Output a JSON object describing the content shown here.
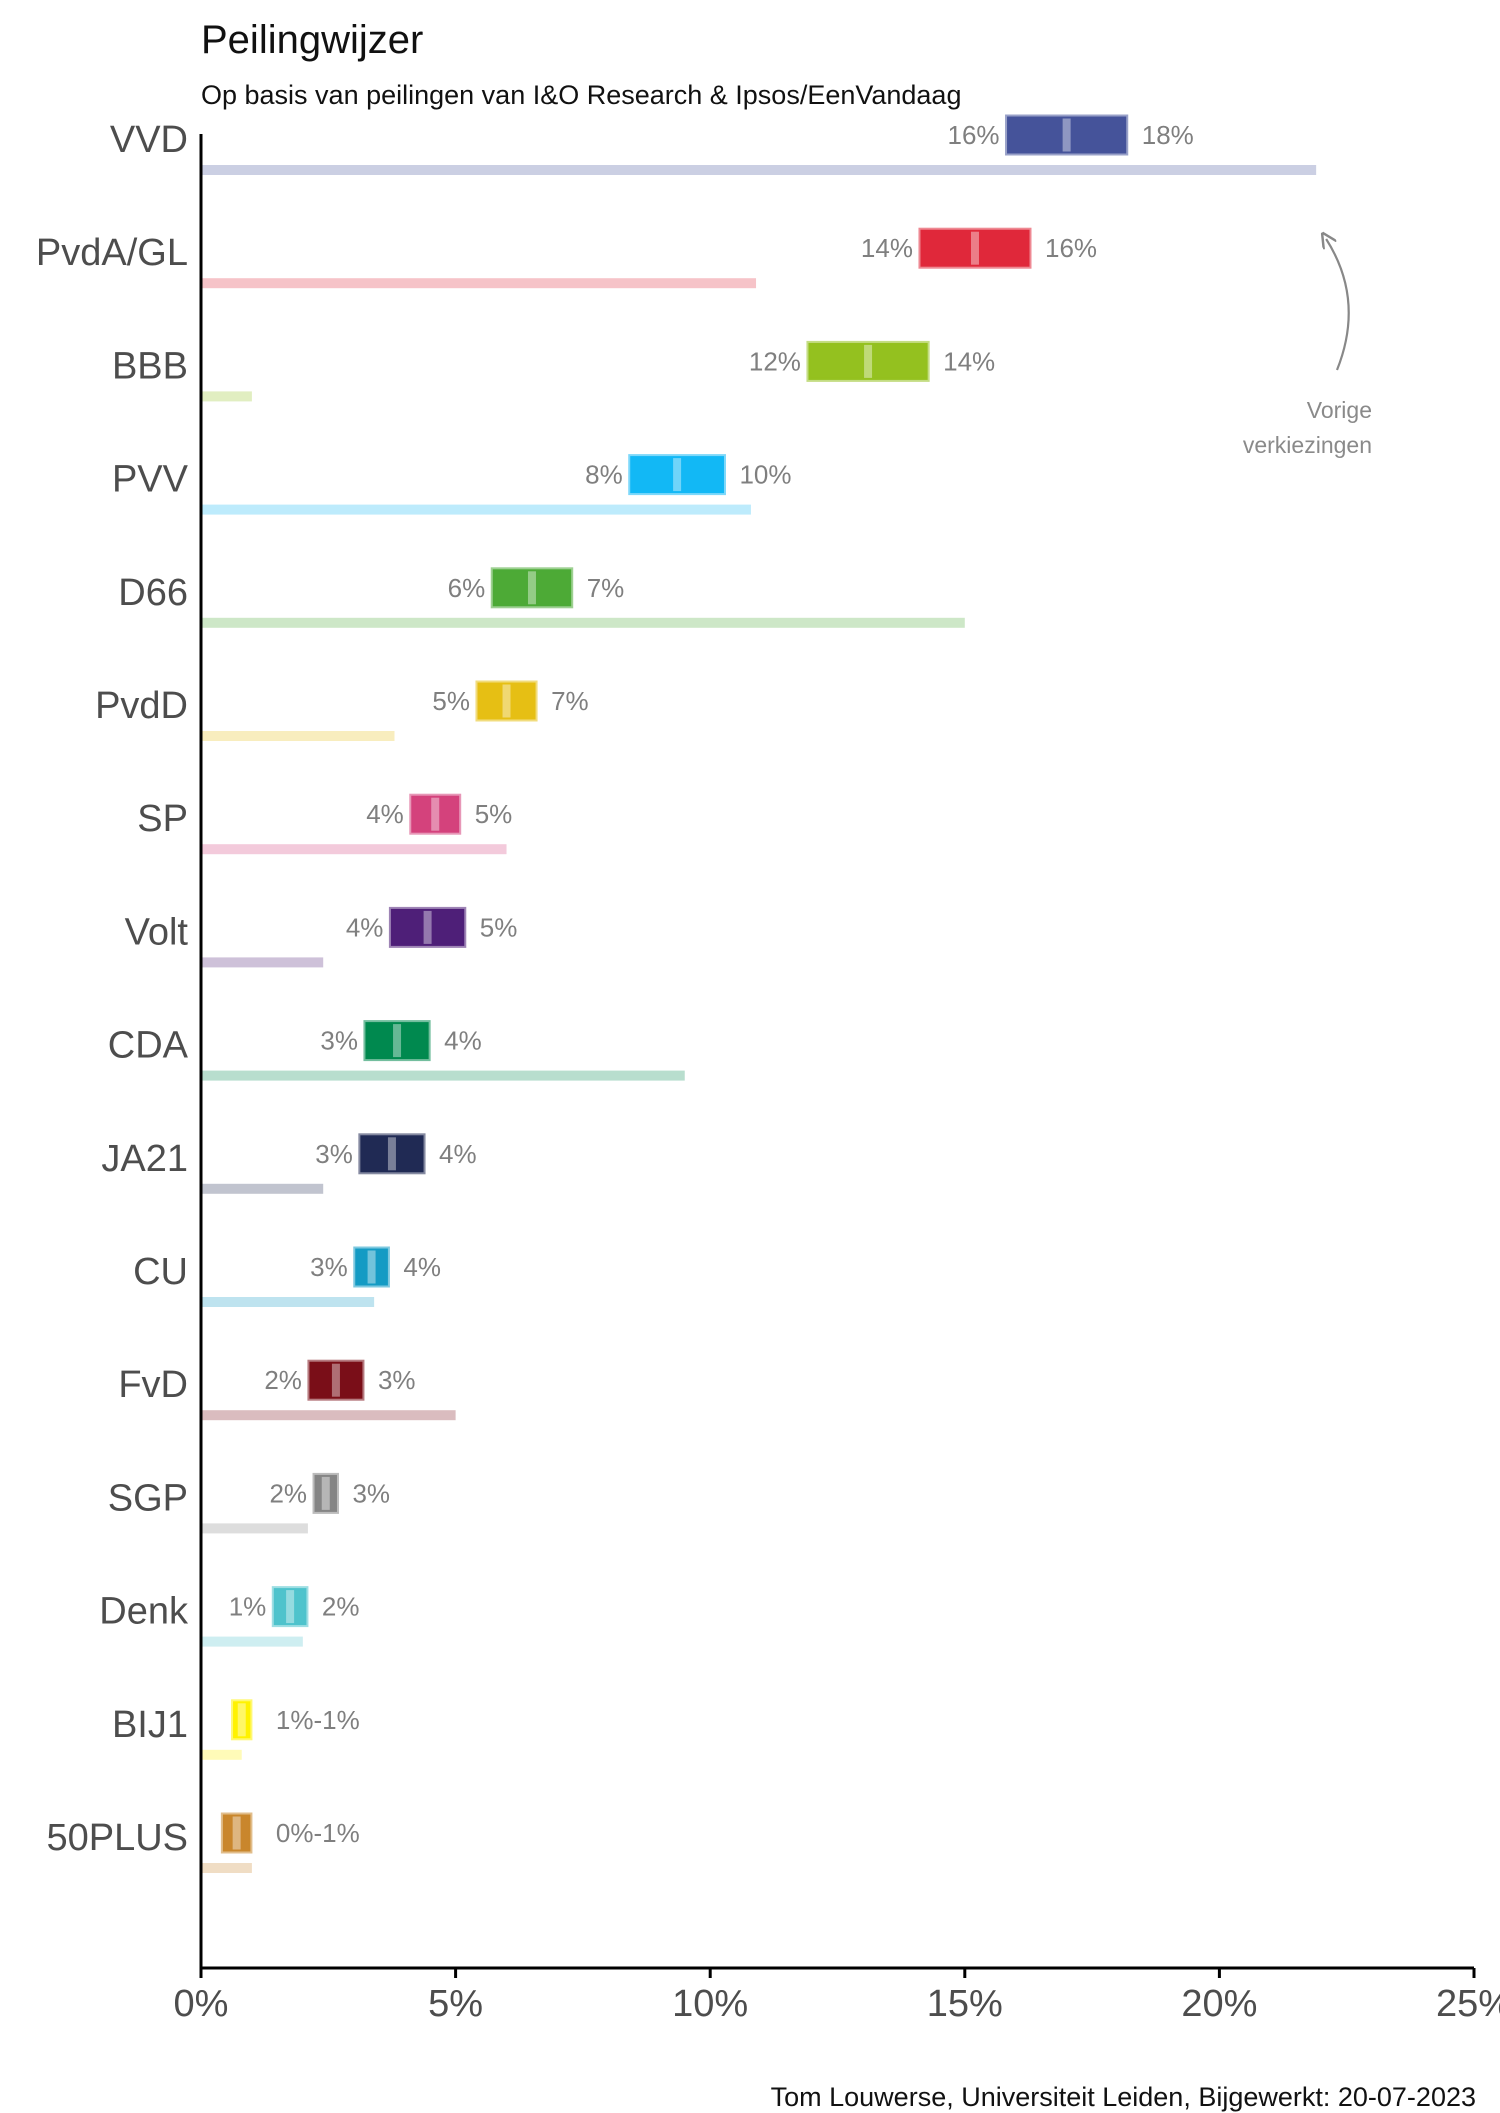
{
  "chart_data": {
    "type": "bar",
    "title": "Peilingwijzer",
    "subtitle": "Op basis van peilingen van I&O Research & Ipsos/EenVandaag",
    "caption": "Tom Louwerse, Universiteit Leiden, Bijgewerkt: 20-07-2023",
    "annotation": "Vorige verkiezingen",
    "annotation_lines": [
      "Vorige",
      "verkiezingen"
    ],
    "xlim": [
      0,
      25
    ],
    "x_ticks": [
      0,
      5,
      10,
      15,
      20,
      25
    ],
    "x_tick_labels": [
      "0%",
      "5%",
      "10%",
      "15%",
      "20%",
      "25%"
    ],
    "parties": [
      {
        "name": "VVD",
        "low": 15.8,
        "high": 18.2,
        "mid": 17.0,
        "low_label": "16%",
        "high_label": "18%",
        "range_label": "",
        "previous": 21.9,
        "color": "#45539A"
      },
      {
        "name": "PvdA/GL",
        "low": 14.1,
        "high": 16.3,
        "mid": 15.2,
        "low_label": "14%",
        "high_label": "16%",
        "range_label": "",
        "previous": 10.9,
        "color": "#E0283A"
      },
      {
        "name": "BBB",
        "low": 11.9,
        "high": 14.3,
        "mid": 13.1,
        "low_label": "12%",
        "high_label": "14%",
        "range_label": "",
        "previous": 1.0,
        "color": "#94C11F"
      },
      {
        "name": "PVV",
        "low": 8.4,
        "high": 10.3,
        "mid": 9.35,
        "low_label": "8%",
        "high_label": "10%",
        "range_label": "",
        "previous": 10.8,
        "color": "#12B8F5"
      },
      {
        "name": "D66",
        "low": 5.7,
        "high": 7.3,
        "mid": 6.5,
        "low_label": "6%",
        "high_label": "7%",
        "range_label": "",
        "previous": 15.0,
        "color": "#4DAA36"
      },
      {
        "name": "PvdD",
        "low": 5.4,
        "high": 6.6,
        "mid": 6.0,
        "low_label": "5%",
        "high_label": "7%",
        "range_label": "",
        "previous": 3.8,
        "color": "#E6BF14"
      },
      {
        "name": "SP",
        "low": 4.1,
        "high": 5.1,
        "mid": 4.6,
        "low_label": "4%",
        "high_label": "5%",
        "range_label": "",
        "previous": 6.0,
        "color": "#D4427C"
      },
      {
        "name": "Volt",
        "low": 3.7,
        "high": 5.2,
        "mid": 4.45,
        "low_label": "4%",
        "high_label": "5%",
        "range_label": "",
        "previous": 2.4,
        "color": "#4E1F78"
      },
      {
        "name": "CDA",
        "low": 3.2,
        "high": 4.5,
        "mid": 3.85,
        "low_label": "3%",
        "high_label": "4%",
        "range_label": "",
        "previous": 9.5,
        "color": "#00894F"
      },
      {
        "name": "JA21",
        "low": 3.1,
        "high": 4.4,
        "mid": 3.75,
        "low_label": "3%",
        "high_label": "4%",
        "range_label": "",
        "previous": 2.4,
        "color": "#202A54"
      },
      {
        "name": "CU",
        "low": 3.0,
        "high": 3.7,
        "mid": 3.35,
        "low_label": "3%",
        "high_label": "4%",
        "range_label": "",
        "previous": 3.4,
        "color": "#149BC4"
      },
      {
        "name": "FvD",
        "low": 2.1,
        "high": 3.2,
        "mid": 2.65,
        "low_label": "2%",
        "high_label": "3%",
        "range_label": "",
        "previous": 5.0,
        "color": "#7A0E18"
      },
      {
        "name": "SGP",
        "low": 2.2,
        "high": 2.7,
        "mid": 2.45,
        "low_label": "2%",
        "high_label": "3%",
        "range_label": "",
        "previous": 2.1,
        "color": "#858585"
      },
      {
        "name": "Denk",
        "low": 1.4,
        "high": 2.1,
        "mid": 1.75,
        "low_label": "1%",
        "high_label": "2%",
        "range_label": "",
        "previous": 2.0,
        "color": "#4FC3CC"
      },
      {
        "name": "BIJ1",
        "low": 0.6,
        "high": 1.0,
        "mid": 0.8,
        "low_label": "",
        "high_label": "",
        "range_label": "1%-1%",
        "previous": 0.8,
        "color": "#FFF200"
      },
      {
        "name": "50PLUS",
        "low": 0.4,
        "high": 1.0,
        "mid": 0.7,
        "low_label": "",
        "high_label": "",
        "range_label": "0%-1%",
        "previous": 1.0,
        "color": "#C9862C"
      }
    ]
  }
}
